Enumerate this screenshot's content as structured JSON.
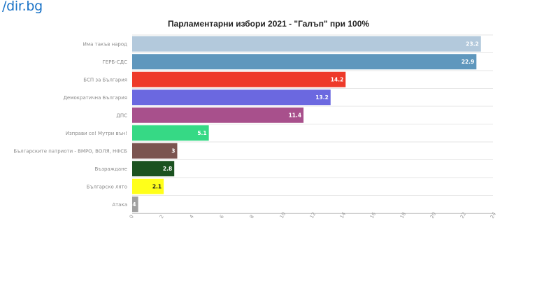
{
  "site": {
    "logo_text": "/dir.bg"
  },
  "chart_data": {
    "type": "bar",
    "orientation": "horizontal",
    "title": "Парламентарни избори 2021 - \"Галъп\" при 100%",
    "categories": [
      "Има такъв народ",
      "ГЕРБ-СДС",
      "БСП за България",
      "Демократична България",
      "ДПС",
      "Изправи се! Мутри вън!",
      "Българските патриоти - ВМРО, ВОЛЯ, НФСБ",
      "Възраждане",
      "Българско лято",
      "Атака"
    ],
    "values": [
      23.2,
      22.9,
      14.2,
      13.2,
      11.4,
      5.1,
      3,
      2.8,
      2.1,
      0.4
    ],
    "value_labels": [
      "23.2",
      "22.9",
      "14.2",
      "13.2",
      "11.4",
      "5.1",
      "3",
      "2.8",
      "2.1",
      "0.4"
    ],
    "colors": [
      "#b3c9dc",
      "#5f97bd",
      "#ee3a2a",
      "#6b68e0",
      "#a8508c",
      "#36d985",
      "#7b5450",
      "#1b5220",
      "#ffff1a",
      "#a0a0a0"
    ],
    "label_colors": [
      "#ffffff",
      "#ffffff",
      "#ffffff",
      "#ffffff",
      "#ffffff",
      "#ffffff",
      "#ffffff",
      "#ffffff",
      "#222222",
      "#ffffff"
    ],
    "xlim": [
      0,
      24
    ],
    "xticks": [
      "0",
      "2",
      "4",
      "6",
      "8",
      "10",
      "12",
      "14",
      "16",
      "18",
      "20",
      "22",
      "24"
    ],
    "grid": true
  }
}
